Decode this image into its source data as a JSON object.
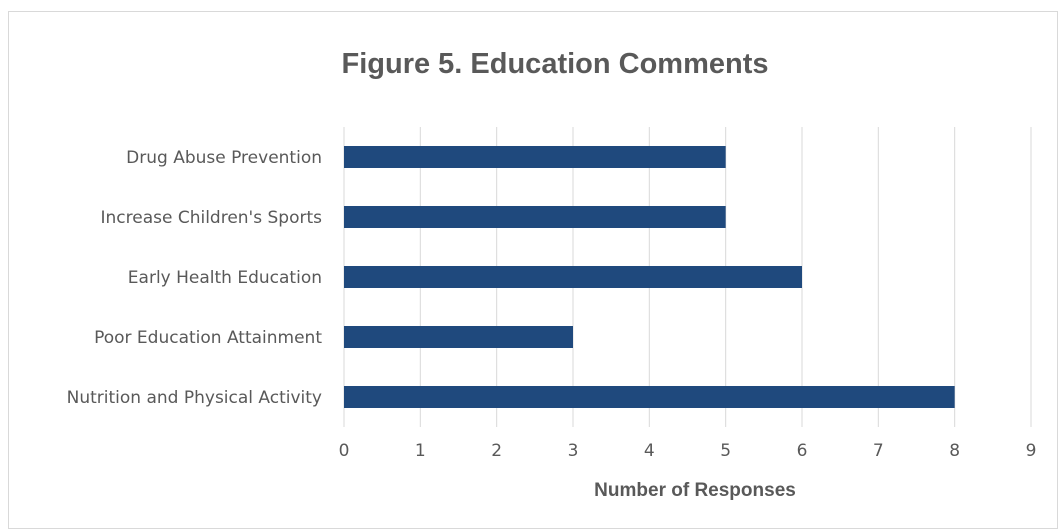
{
  "chart_data": {
    "type": "bar",
    "orientation": "horizontal",
    "title": "Figure 5. Education Comments",
    "xlabel": "Number of Responses",
    "ylabel": "",
    "categories": [
      "Drug Abuse Prevention",
      "Increase Children's Sports",
      "Early Health Education",
      "Poor Education Attainment",
      "Nutrition and Physical Activity"
    ],
    "values": [
      5,
      5,
      6,
      3,
      8
    ],
    "xlim": [
      0,
      9
    ],
    "ticks": [
      "0",
      "1",
      "2",
      "3",
      "4",
      "5",
      "6",
      "7",
      "8",
      "9"
    ],
    "grid": true,
    "legend": "none",
    "bar_color": "#1f497d"
  }
}
